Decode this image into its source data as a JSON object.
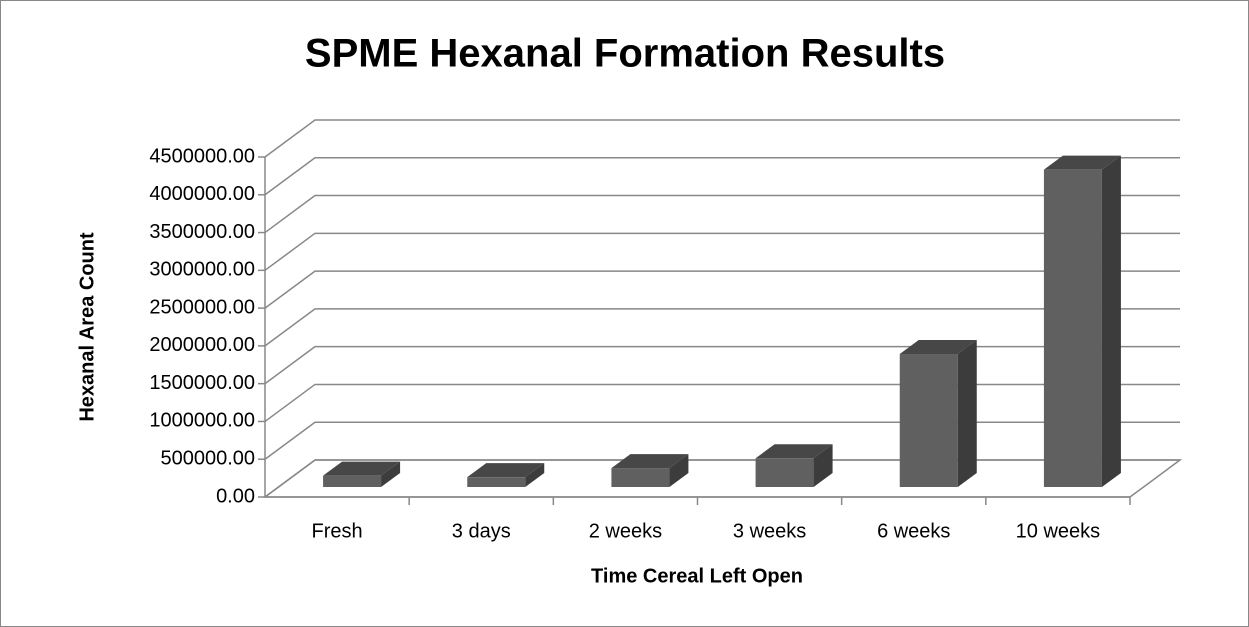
{
  "chart_data": {
    "type": "bar3d",
    "title": "SPME Hexanal Formation Results",
    "x_label": "Time Cereal Left Open",
    "y_label": "Hexanal Area Count",
    "categories": [
      "Fresh",
      "3 days",
      "2 weeks",
      "3 weeks",
      "6 weeks",
      "10 weeks"
    ],
    "values": [
      150000,
      130000,
      250000,
      380000,
      1760000,
      4200000
    ],
    "color": "#606060",
    "ylim": [
      0,
      4500000
    ],
    "yticks": [
      {
        "value": 0,
        "label": "0.00"
      },
      {
        "value": 500000,
        "label": "500000.00"
      },
      {
        "value": 1000000,
        "label": "1000000.00"
      },
      {
        "value": 1500000,
        "label": "1500000.00"
      },
      {
        "value": 2000000,
        "label": "2000000.00"
      },
      {
        "value": 2500000,
        "label": "2500000.00"
      },
      {
        "value": 3000000,
        "label": "3000000.00"
      },
      {
        "value": 3500000,
        "label": "3500000.00"
      },
      {
        "value": 4000000,
        "label": "4000000.00"
      },
      {
        "value": 4500000,
        "label": "4500000.00"
      }
    ],
    "grid": true
  }
}
